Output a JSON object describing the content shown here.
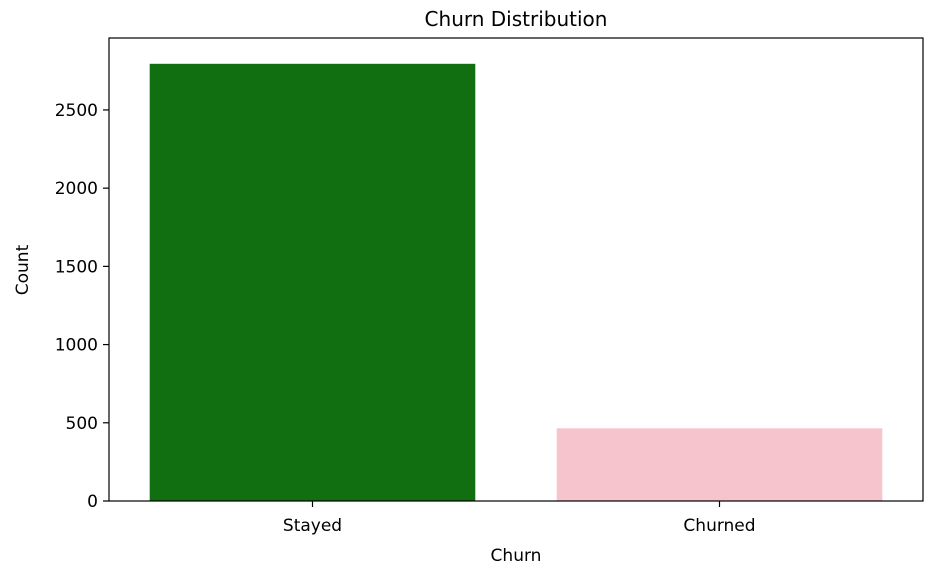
{
  "chart_data": {
    "type": "bar",
    "title": "Churn Distribution",
    "xlabel": "Churn",
    "ylabel": "Count",
    "categories": [
      "Stayed",
      "Churned"
    ],
    "values": [
      2795,
      465
    ],
    "colors": [
      "#116e11",
      "#f6c4cd"
    ],
    "ylim": [
      0,
      2960
    ],
    "yticks": [
      0,
      500,
      1000,
      1500,
      2000,
      2500
    ],
    "grid": false,
    "legend": "none"
  }
}
